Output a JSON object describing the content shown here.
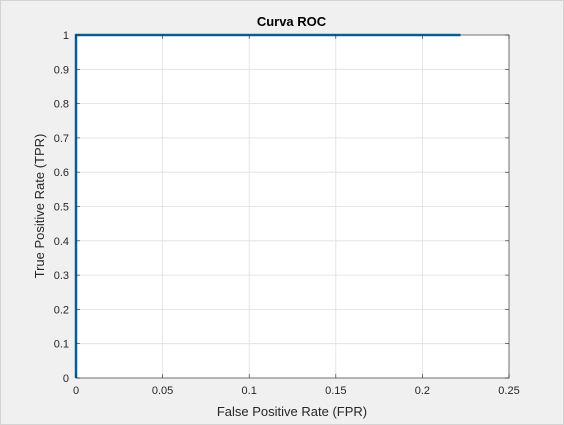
{
  "chart_data": {
    "type": "line",
    "title": "Curva ROC",
    "xlabel": "False Positive Rate (FPR)",
    "ylabel": "True Positive Rate (TPR)",
    "xlim": [
      0,
      0.25
    ],
    "ylim": [
      0,
      1
    ],
    "xticks": [
      0,
      0.05,
      0.1,
      0.15,
      0.2,
      0.25
    ],
    "xtick_labels": [
      "0",
      "0.05",
      "0.1",
      "0.15",
      "0.2",
      "0.25"
    ],
    "yticks": [
      0,
      0.1,
      0.2,
      0.3,
      0.4,
      0.5,
      0.6,
      0.7,
      0.8,
      0.9,
      1
    ],
    "ytick_labels": [
      "0",
      "0.1",
      "0.2",
      "0.3",
      "0.4",
      "0.5",
      "0.6",
      "0.7",
      "0.8",
      "0.9",
      "1"
    ],
    "grid": true,
    "series": [
      {
        "color": "#0072bd",
        "x": [
          0,
          0,
          0.222
        ],
        "y": [
          0,
          1,
          1
        ]
      }
    ]
  }
}
